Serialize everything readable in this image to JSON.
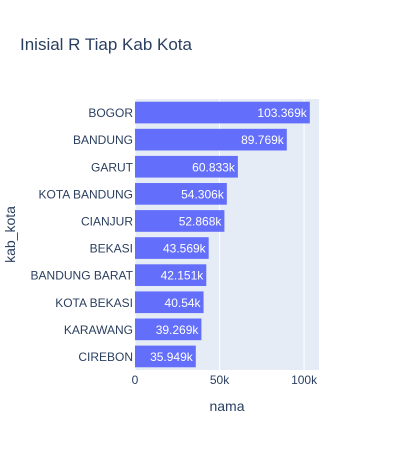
{
  "chart_data": {
    "type": "bar",
    "orientation": "horizontal",
    "title": "Inisial R Tiap Kab Kota",
    "xlabel": "nama",
    "ylabel": "kab_kota",
    "categories": [
      "BOGOR",
      "BANDUNG",
      "GARUT",
      "KOTA BANDUNG",
      "CIANJUR",
      "BEKASI",
      "BANDUNG BARAT",
      "KOTA BEKASI",
      "KARAWANG",
      "CIREBON"
    ],
    "values": [
      103369,
      89769,
      60833,
      54306,
      52868,
      43569,
      42151,
      40540,
      39269,
      35949
    ],
    "data_labels": [
      "103.369k",
      "89.769k",
      "60.833k",
      "54.306k",
      "52.868k",
      "43.569k",
      "42.151k",
      "40.54k",
      "39.269k",
      "35.949k"
    ],
    "xlim": [
      0,
      108809
    ],
    "x_ticks": [
      0,
      50000,
      100000
    ],
    "x_tick_labels": [
      "0",
      "50k",
      "100k"
    ],
    "grid": true,
    "colors": {
      "bar": "#636efa",
      "plot_bg": "#e5ecf6",
      "grid": "#ffffff",
      "text": "#2a3f5f",
      "bar_label": "#ffffff"
    }
  }
}
